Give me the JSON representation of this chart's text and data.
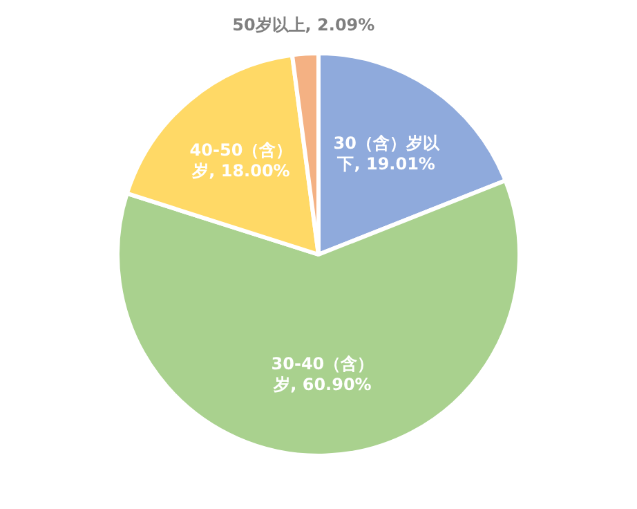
{
  "chart_data": {
    "type": "pie",
    "categories": [
      "30（含）岁以下",
      "30-40（含）岁",
      "40-50（含）岁",
      "50岁以上"
    ],
    "values": [
      19.01,
      60.9,
      18.0,
      2.09
    ],
    "value_labels": [
      "19.01%",
      "60.90%",
      "18.00%",
      "2.09%"
    ],
    "colors": [
      "#8faadc",
      "#a9d18e",
      "#ffd966",
      "#f4b183"
    ],
    "legend": false
  }
}
